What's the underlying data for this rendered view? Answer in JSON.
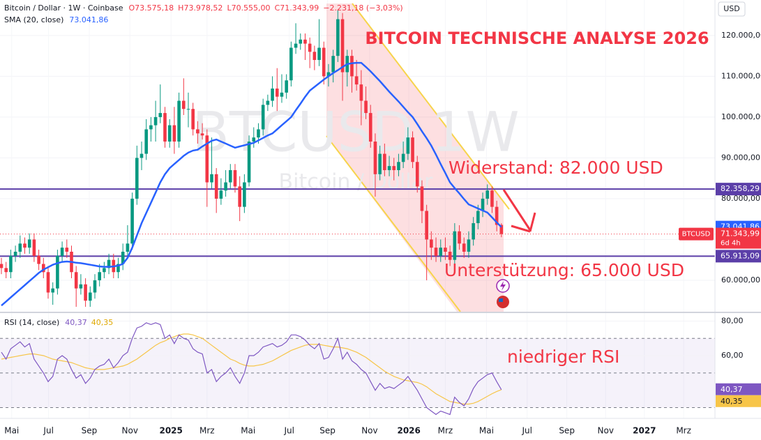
{
  "chart_data": {
    "type": "candlestick",
    "title": "BITCOIN TECHNISCHE ANALYSE 2026",
    "symbol": "Bitcoin / Dollar · 1W · Coinbase",
    "ohlc_header": [
      "O73.575,18",
      "H73.978,52",
      "L70.555,00",
      "C71.343,99"
    ],
    "change": "−2.231,18 (−3,03%)",
    "watermark": "BTCUSD 1W",
    "watermark_sub": "Bitcoin / Dollar",
    "currency": "USD",
    "annotations": [
      "Widerstand: 82.000 USD",
      "Unterstützung: 65.000 USD",
      "niedriger RSI"
    ],
    "up_color": "#089981",
    "down_color": "#f23645",
    "xlim": [
      -0.3,
      152.7
    ],
    "xticks": [
      {
        "value": 2.2,
        "label": "Mai"
      },
      {
        "value": 10.1,
        "label": "Jul"
      },
      {
        "value": 18.8,
        "label": "Sep"
      },
      {
        "value": 27.5,
        "label": "Nov"
      },
      {
        "value": 36.3,
        "label": "2025"
      },
      {
        "value": 44.0,
        "label": "Mrz"
      },
      {
        "value": 52.8,
        "label": "Mai"
      },
      {
        "value": 61.6,
        "label": "Jul"
      },
      {
        "value": 69.8,
        "label": "Sep"
      },
      {
        "value": 78.8,
        "label": "Nov"
      },
      {
        "value": 87.2,
        "label": "2026"
      },
      {
        "value": 95.0,
        "label": "Mrz"
      },
      {
        "value": 103.8,
        "label": "Mai"
      },
      {
        "value": 112.5,
        "label": "Jul"
      },
      {
        "value": 121.0,
        "label": "Sep"
      },
      {
        "value": 129.3,
        "label": "Nov"
      },
      {
        "value": 137.6,
        "label": "2027"
      },
      {
        "value": 146.0,
        "label": "Mrz"
      }
    ],
    "ylim": [
      52300,
      128700
    ],
    "yticks": [
      {
        "value": 60000,
        "label": "60.000,00"
      },
      {
        "value": 70000,
        "label": "70.000,00"
      },
      {
        "value": 80000,
        "label": "80.000,00"
      },
      {
        "value": 90000,
        "label": "90.000,00"
      },
      {
        "value": 100000,
        "label": "100.000,00"
      },
      {
        "value": 110000,
        "label": "110.000,00"
      },
      {
        "value": 120000,
        "label": "120.000,00"
      }
    ],
    "candles": [
      [
        64000,
        65500,
        61500,
        63000
      ],
      [
        63000,
        64500,
        60500,
        62000
      ],
      [
        62000,
        67500,
        60500,
        66000
      ],
      [
        66000,
        68500,
        64500,
        67000
      ],
      [
        67000,
        71000,
        65500,
        69000
      ],
      [
        69000,
        70500,
        66500,
        68000
      ],
      [
        68000,
        71500,
        66500,
        70000
      ],
      [
        70000,
        71500,
        64500,
        66000
      ],
      [
        66000,
        67500,
        62500,
        64000
      ],
      [
        64000,
        65500,
        60500,
        62000
      ],
      [
        62000,
        63500,
        55500,
        57000
      ],
      [
        57000,
        59500,
        54000,
        58000
      ],
      [
        58000,
        67500,
        56500,
        66000
      ],
      [
        66000,
        69500,
        64500,
        68000
      ],
      [
        68000,
        70000,
        65500,
        67000
      ],
      [
        67000,
        68500,
        60500,
        62000
      ],
      [
        62000,
        63500,
        53500,
        58000
      ],
      [
        58000,
        61500,
        56500,
        59000
      ],
      [
        59000,
        60500,
        53500,
        55000
      ],
      [
        55000,
        58500,
        53500,
        57000
      ],
      [
        57000,
        61500,
        55500,
        60000
      ],
      [
        60000,
        64000,
        58500,
        62000
      ],
      [
        62000,
        64500,
        60500,
        63000
      ],
      [
        63000,
        66500,
        61500,
        65000
      ],
      [
        65000,
        66500,
        60500,
        62000
      ],
      [
        62000,
        65500,
        60500,
        64000
      ],
      [
        64000,
        69000,
        62500,
        67000
      ],
      [
        67000,
        73500,
        66000,
        69000
      ],
      [
        69000,
        81500,
        67500,
        80000
      ],
      [
        80000,
        93000,
        78500,
        90000
      ],
      [
        90000,
        94000,
        87000,
        91000
      ],
      [
        91000,
        99500,
        89500,
        97000
      ],
      [
        97000,
        100000,
        94000,
        98000
      ],
      [
        98000,
        104000,
        94000,
        100000
      ],
      [
        100000,
        108000,
        98500,
        101000
      ],
      [
        101000,
        102500,
        92500,
        94000
      ],
      [
        94000,
        99500,
        92500,
        98000
      ],
      [
        98000,
        102500,
        91000,
        94000
      ],
      [
        94000,
        106000,
        92500,
        104000
      ],
      [
        104000,
        109500,
        100500,
        102000
      ],
      [
        102000,
        106000,
        97500,
        102000
      ],
      [
        102000,
        103500,
        95500,
        97000
      ],
      [
        97000,
        99000,
        93500,
        96000
      ],
      [
        96000,
        98500,
        94500,
        95500
      ],
      [
        95500,
        97000,
        78000,
        84000
      ],
      [
        84000,
        95000,
        82500,
        86000
      ],
      [
        86000,
        87500,
        76500,
        80000
      ],
      [
        80000,
        85000,
        78500,
        82000
      ],
      [
        82000,
        87000,
        80500,
        84000
      ],
      [
        84000,
        88500,
        82500,
        87000
      ],
      [
        87000,
        88500,
        81500,
        83000
      ],
      [
        83000,
        85500,
        74500,
        78000
      ],
      [
        78000,
        86000,
        76500,
        84000
      ],
      [
        84000,
        95500,
        83000,
        94000
      ],
      [
        94000,
        97500,
        92500,
        95000
      ],
      [
        95000,
        98500,
        93500,
        97000
      ],
      [
        97000,
        104500,
        95500,
        103000
      ],
      [
        103000,
        105500,
        101500,
        104000
      ],
      [
        104000,
        110000,
        102500,
        107000
      ],
      [
        107000,
        112000,
        101500,
        105000
      ],
      [
        105000,
        110500,
        103500,
        106000
      ],
      [
        106000,
        110500,
        104500,
        109000
      ],
      [
        109000,
        118500,
        107500,
        117000
      ],
      [
        117000,
        123000,
        115500,
        118000
      ],
      [
        118000,
        120500,
        116500,
        119000
      ],
      [
        119000,
        120500,
        114000,
        118000
      ],
      [
        118000,
        119500,
        112000,
        116000
      ],
      [
        116000,
        117500,
        111500,
        114000
      ],
      [
        114000,
        124000,
        112500,
        117000
      ],
      [
        117000,
        118500,
        108000,
        110000
      ],
      [
        110000,
        113000,
        107500,
        111000
      ],
      [
        111000,
        116500,
        108500,
        115000
      ],
      [
        115000,
        126200,
        113500,
        124000
      ],
      [
        124000,
        125500,
        104000,
        111000
      ],
      [
        111000,
        116500,
        107500,
        115000
      ],
      [
        115000,
        116500,
        106000,
        110000
      ],
      [
        110000,
        114000,
        106500,
        108000
      ],
      [
        108000,
        111500,
        98000,
        104000
      ],
      [
        104000,
        107500,
        99500,
        101000
      ],
      [
        101000,
        103000,
        92500,
        94000
      ],
      [
        94000,
        96000,
        80500,
        86000
      ],
      [
        86000,
        93000,
        84500,
        91000
      ],
      [
        91000,
        93500,
        85500,
        87000
      ],
      [
        87000,
        90500,
        85500,
        88000
      ],
      [
        88000,
        90000,
        84500,
        87000
      ],
      [
        87000,
        91000,
        85500,
        89000
      ],
      [
        89000,
        94000,
        87500,
        91000
      ],
      [
        91000,
        97500,
        89500,
        95000
      ],
      [
        95000,
        96500,
        87500,
        89000
      ],
      [
        89000,
        90500,
        81500,
        83000
      ],
      [
        83000,
        84500,
        74000,
        77000
      ],
      [
        77000,
        78500,
        60000,
        70000
      ],
      [
        70000,
        72000,
        65000,
        68000
      ],
      [
        68000,
        70500,
        64500,
        66000
      ],
      [
        66000,
        70000,
        64500,
        68000
      ],
      [
        68000,
        70500,
        65000,
        67000
      ],
      [
        67000,
        68500,
        63500,
        65000
      ],
      [
        65000,
        74000,
        63500,
        72000
      ],
      [
        72000,
        73500,
        67500,
        69000
      ],
      [
        69000,
        70500,
        65500,
        67000
      ],
      [
        67000,
        72000,
        65500,
        70000
      ],
      [
        70000,
        75500,
        68500,
        74000
      ],
      [
        74000,
        78500,
        72500,
        77000
      ],
      [
        77000,
        81500,
        75500,
        80000
      ],
      [
        80000,
        83500,
        78500,
        82000
      ],
      [
        82000,
        83000,
        76500,
        78000
      ],
      [
        78000,
        79500,
        72000,
        73575.18
      ],
      [
        73575.18,
        73978.52,
        70555,
        71343.99
      ]
    ],
    "sma": {
      "name": "SMA (20, close)",
      "color": "#2962ff",
      "value_label": "73.041,86",
      "values": [
        53800,
        54800,
        55800,
        56800,
        57800,
        58800,
        59800,
        60800,
        61800,
        62600,
        63200,
        63800,
        64200,
        64500,
        64600,
        64500,
        64300,
        64200,
        64000,
        63800,
        63600,
        63400,
        63300,
        63300,
        63400,
        63600,
        64000,
        65500,
        68000,
        71000,
        74000,
        76500,
        79000,
        81500,
        84000,
        86000,
        87500,
        88500,
        89500,
        90500,
        91300,
        91800,
        92000,
        92800,
        93500,
        94200,
        94500,
        94000,
        93500,
        93000,
        92500,
        92800,
        93100,
        93400,
        93700,
        94300,
        94900,
        95500,
        96000,
        97000,
        98000,
        99000,
        100000,
        101700,
        103300,
        105000,
        106500,
        107400,
        108300,
        109200,
        110000,
        110800,
        111500,
        112300,
        113000,
        113200,
        113300,
        113300,
        112300,
        111200,
        110000,
        108800,
        107500,
        106200,
        105000,
        103800,
        102500,
        101200,
        100000,
        98300,
        96500,
        94800,
        93000,
        90800,
        88500,
        86300,
        84000,
        82600,
        81300,
        79900,
        78600,
        78100,
        77600,
        77100,
        76600,
        75400,
        74200,
        73041.86
      ]
    },
    "levels": [
      {
        "value": 82358.29,
        "label": "82.358,29",
        "color": "#5b3ea8"
      },
      {
        "value": 65913.09,
        "label": "65.913,09",
        "color": "#5b3ea8"
      }
    ],
    "last_price": {
      "symbol": "BTCUSD",
      "label": "71.343,99",
      "countdown": "6d 4h",
      "color": "#f23645"
    },
    "rsi": {
      "name": "RSI (14, close)",
      "color": "#7e57c2",
      "value_label": "40,37",
      "values": [
        62,
        58,
        64,
        66,
        68,
        65,
        67,
        58,
        54,
        50,
        45,
        48,
        58,
        60,
        58,
        52,
        47,
        49,
        44,
        47,
        52,
        54,
        55,
        58,
        53,
        56,
        60,
        62,
        70,
        76,
        77,
        79,
        78,
        79,
        78,
        70,
        72,
        67,
        72,
        70,
        69,
        64,
        62,
        61,
        50,
        52,
        45,
        48,
        50,
        53,
        48,
        44,
        50,
        60,
        60,
        62,
        65,
        66,
        67,
        65,
        66,
        68,
        72,
        72,
        71,
        69,
        66,
        64,
        67,
        58,
        59,
        64,
        70,
        58,
        62,
        57,
        55,
        52,
        50,
        45,
        40,
        44,
        41,
        42,
        41,
        43,
        45,
        48,
        44,
        40,
        35,
        30,
        28,
        26,
        28,
        27,
        26,
        36,
        33,
        31,
        35,
        41,
        45,
        47,
        49,
        50,
        45,
        40.37
      ],
      "ma": {
        "color": "#f7c548",
        "value_label": "40,35",
        "values": [
          58,
          58.5,
          59,
          59.5,
          60,
          60.5,
          61,
          61,
          60.5,
          60,
          59,
          58,
          57.5,
          57,
          56.5,
          56,
          55,
          54,
          53,
          52.5,
          52,
          52,
          52,
          52.5,
          53,
          53.5,
          54,
          55,
          56.5,
          58,
          60,
          62,
          64,
          66,
          67.5,
          68.5,
          70,
          71,
          72,
          72.5,
          72.5,
          72,
          71,
          70,
          68,
          66,
          64,
          62,
          60,
          58,
          57,
          55.5,
          54.5,
          54,
          54,
          54.5,
          55,
          56,
          57,
          58.5,
          60,
          61.5,
          63,
          64,
          65,
          66,
          66.5,
          66.5,
          66.5,
          66,
          65.5,
          65,
          65,
          64.5,
          64,
          63,
          62,
          60.5,
          59,
          57,
          55,
          53,
          51,
          49.5,
          48,
          47,
          46,
          45.5,
          45,
          44.5,
          43.5,
          42,
          40,
          38,
          36.5,
          35,
          33.5,
          33,
          32.5,
          32,
          32,
          32.5,
          33.5,
          35,
          36.5,
          38,
          39.3,
          40.35
        ]
      },
      "ylim": [
        23.75,
        84.2
      ],
      "yticks": [
        {
          "value": 80,
          "label": "80,00"
        },
        {
          "value": 60,
          "label": "60,00"
        }
      ],
      "bands": [
        70,
        50,
        30
      ]
    }
  }
}
